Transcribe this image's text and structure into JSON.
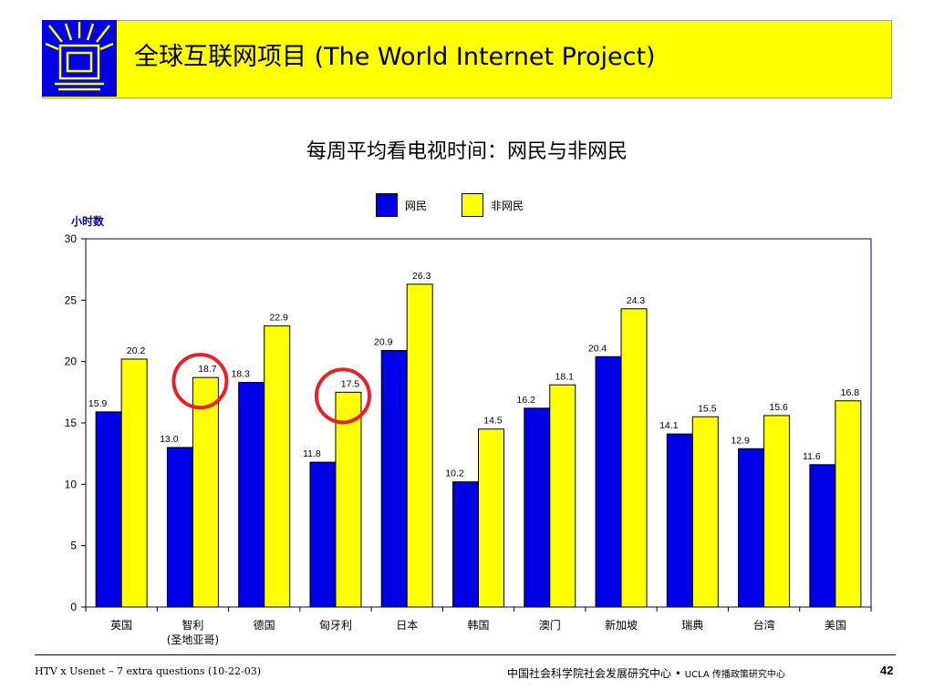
{
  "header": {
    "title": "全球互联网项目 (The World Internet Project)"
  },
  "colors": {
    "header_bg": "#ffff00",
    "logo_bg": "#0000e6",
    "series_internet": "#0000e6",
    "series_noninternet": "#ffff00",
    "highlight_circle": "#e8202a",
    "unit_label": "#0000cc"
  },
  "chart_data": {
    "type": "bar",
    "title": "每周平均看电视时间：网民与非网民",
    "ylabel": "小时数",
    "xlabel": "",
    "ylim": [
      0,
      30
    ],
    "yticks": [
      0,
      5,
      10,
      15,
      20,
      25,
      30
    ],
    "legend_position": "top-center",
    "grid": false,
    "categories": [
      "英国",
      "智利\n(圣地亚哥)",
      "德国",
      "匈牙利",
      "日本",
      "韩国",
      "澳门",
      "新加坡",
      "瑞典",
      "台湾",
      "美国"
    ],
    "series": [
      {
        "name": "网民",
        "values": [
          15.9,
          13.0,
          18.3,
          11.8,
          20.9,
          10.2,
          16.2,
          20.4,
          14.1,
          12.9,
          11.6
        ]
      },
      {
        "name": "非网民",
        "values": [
          20.2,
          18.7,
          22.9,
          17.5,
          26.3,
          14.5,
          18.1,
          24.3,
          15.5,
          15.6,
          16.8
        ]
      }
    ],
    "highlighted": [
      "智利 非网民",
      "匈牙利 非网民"
    ]
  },
  "footer": {
    "left": "HTV x Usenet – 7 extra questions (10-22-03)",
    "center": "中国社会科学院社会发展研究中心",
    "center_sep": "•",
    "center_small": "UCLA 传播政策研究中心",
    "page": "42"
  }
}
